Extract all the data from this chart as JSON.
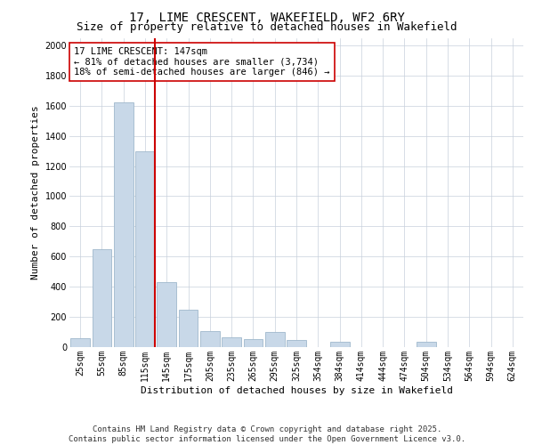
{
  "title_line1": "17, LIME CRESCENT, WAKEFIELD, WF2 6RY",
  "title_line2": "Size of property relative to detached houses in Wakefield",
  "xlabel": "Distribution of detached houses by size in Wakefield",
  "ylabel": "Number of detached properties",
  "categories": [
    "25sqm",
    "55sqm",
    "85sqm",
    "115sqm",
    "145sqm",
    "175sqm",
    "205sqm",
    "235sqm",
    "265sqm",
    "295sqm",
    "325sqm",
    "354sqm",
    "384sqm",
    "414sqm",
    "444sqm",
    "474sqm",
    "504sqm",
    "534sqm",
    "564sqm",
    "594sqm",
    "624sqm"
  ],
  "values": [
    60,
    650,
    1625,
    1300,
    430,
    250,
    105,
    65,
    55,
    100,
    45,
    0,
    35,
    0,
    0,
    0,
    35,
    0,
    0,
    0,
    0
  ],
  "bar_color": "#c8d8e8",
  "bar_edge_color": "#a0b8cc",
  "vline_color": "#cc0000",
  "annotation_text": "17 LIME CRESCENT: 147sqm\n← 81% of detached houses are smaller (3,734)\n18% of semi-detached houses are larger (846) →",
  "annotation_box_color": "#ffffff",
  "annotation_box_edge": "#cc0000",
  "ylim": [
    0,
    2050
  ],
  "yticks": [
    0,
    200,
    400,
    600,
    800,
    1000,
    1200,
    1400,
    1600,
    1800,
    2000
  ],
  "background_color": "#ffffff",
  "grid_color": "#c8d0dc",
  "title_fontsize": 10,
  "subtitle_fontsize": 9,
  "axis_label_fontsize": 8,
  "tick_fontsize": 7,
  "annotation_fontsize": 7.5,
  "footer_fontsize": 6.5
}
